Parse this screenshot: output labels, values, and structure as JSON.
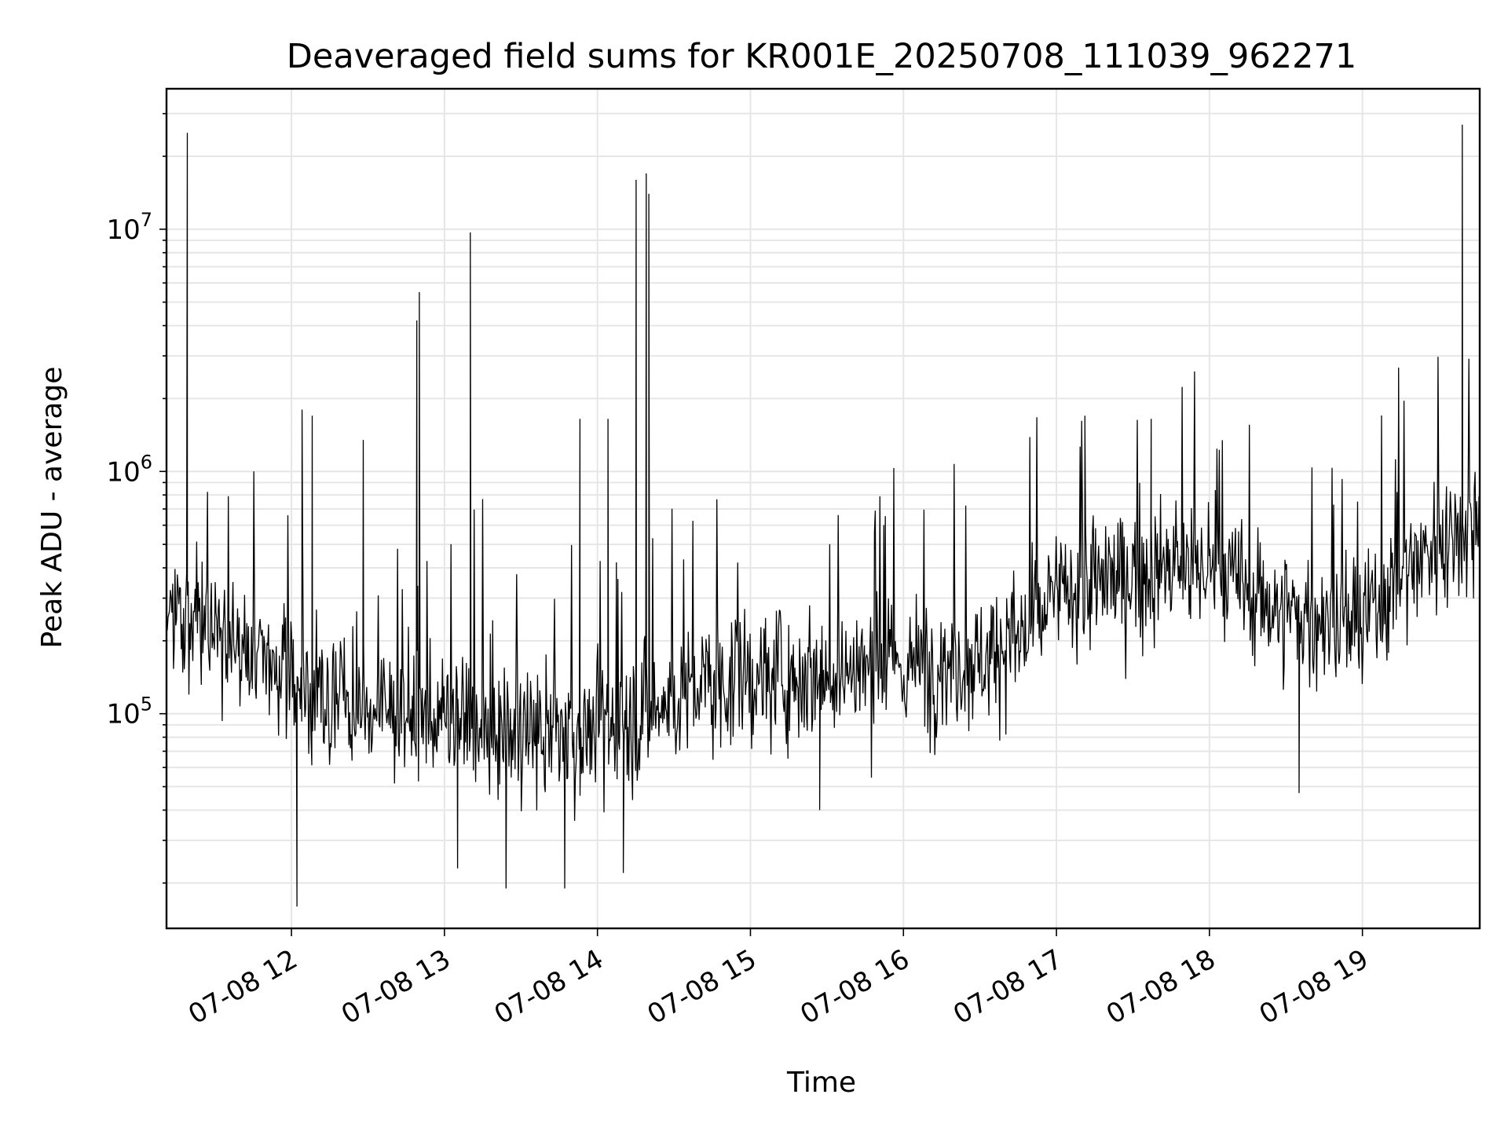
{
  "chart_data": {
    "type": "line",
    "title": "Deaveraged field sums for KR001E_20250708_111039_962271",
    "xlabel": "Time",
    "ylabel": "Peak ADU - average",
    "yscale": "log",
    "xlim": [
      "07-08 11:11",
      "07-08 19:46"
    ],
    "ylim": [
      13000,
      38000000
    ],
    "grid": true,
    "x_ticks": [
      "07-08 12",
      "07-08 13",
      "07-08 14",
      "07-08 15",
      "07-08 16",
      "07-08 17",
      "07-08 18",
      "07-08 19"
    ],
    "y_ticks": [
      {
        "base": "10",
        "exp": "5",
        "value": 100000
      },
      {
        "base": "10",
        "exp": "6",
        "value": 1000000
      },
      {
        "base": "10",
        "exp": "7",
        "value": 10000000
      }
    ],
    "line_color": "#000000",
    "grid_color": "#e6e6e6",
    "baseline": [
      {
        "x": "07-08 11:11",
        "y": 290000
      },
      {
        "x": "07-08 11:30",
        "y": 210000
      },
      {
        "x": "07-08 12:00",
        "y": 140000
      },
      {
        "x": "07-08 12:30",
        "y": 105000
      },
      {
        "x": "07-08 13:00",
        "y": 95000
      },
      {
        "x": "07-08 13:30",
        "y": 80000
      },
      {
        "x": "07-08 14:00",
        "y": 85000
      },
      {
        "x": "07-08 14:20",
        "y": 100000
      },
      {
        "x": "07-08 14:40",
        "y": 130000
      },
      {
        "x": "07-08 15:00",
        "y": 140000
      },
      {
        "x": "07-08 15:30",
        "y": 150000
      },
      {
        "x": "07-08 16:00",
        "y": 155000
      },
      {
        "x": "07-08 16:30",
        "y": 170000
      },
      {
        "x": "07-08 16:50",
        "y": 220000
      },
      {
        "x": "07-08 17:00",
        "y": 310000
      },
      {
        "x": "07-08 17:30",
        "y": 380000
      },
      {
        "x": "07-08 18:00",
        "y": 400000
      },
      {
        "x": "07-08 18:30",
        "y": 260000
      },
      {
        "x": "07-08 19:00",
        "y": 230000
      },
      {
        "x": "07-08 19:15",
        "y": 380000
      },
      {
        "x": "07-08 19:30",
        "y": 520000
      },
      {
        "x": "07-08 19:46",
        "y": 650000
      }
    ],
    "spikes": [
      {
        "x": "07-08 11:19",
        "y": 25000000
      },
      {
        "x": "07-08 12:50",
        "y": 5500000
      },
      {
        "x": "07-08 12:49",
        "y": 4200000
      },
      {
        "x": "07-08 13:10",
        "y": 9700000
      },
      {
        "x": "07-08 14:15",
        "y": 16000000
      },
      {
        "x": "07-08 14:19",
        "y": 17000000
      },
      {
        "x": "07-08 14:20",
        "y": 14000000
      },
      {
        "x": "07-08 19:39",
        "y": 27000000
      },
      {
        "x": "07-08 12:04",
        "y": 1800000
      },
      {
        "x": "07-08 12:08",
        "y": 1700000
      },
      {
        "x": "07-08 12:28",
        "y": 1350000
      },
      {
        "x": "07-08 13:53",
        "y": 1650000
      },
      {
        "x": "07-08 14:04",
        "y": 1650000
      },
      {
        "x": "07-08 17:11",
        "y": 1700000
      },
      {
        "x": "07-08 17:37",
        "y": 1650000
      },
      {
        "x": "07-08 19:14",
        "y": 1650000
      }
    ],
    "dips": [
      {
        "x": "07-08 12:02",
        "y": 16000
      },
      {
        "x": "07-08 13:24",
        "y": 19000
      },
      {
        "x": "07-08 13:47",
        "y": 19000
      },
      {
        "x": "07-08 14:10",
        "y": 22000
      },
      {
        "x": "07-08 13:05",
        "y": 23000
      },
      {
        "x": "07-08 15:27",
        "y": 40000
      },
      {
        "x": "07-08 18:35",
        "y": 47000
      }
    ]
  }
}
